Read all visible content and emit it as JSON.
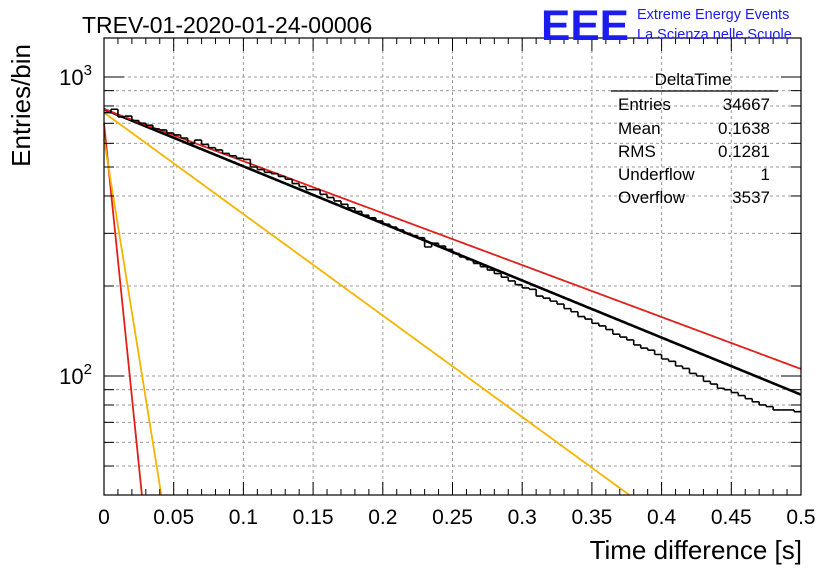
{
  "chart_data": {
    "type": "histogram",
    "title": "TREV-01-2020-01-24-00006",
    "xlabel": "Time difference [s]",
    "ylabel": "Entries/bin",
    "xlim": [
      0,
      0.5
    ],
    "ylim": [
      40,
      1350
    ],
    "yscale": "log",
    "grid": true,
    "x_ticks": [
      "0",
      "0.05",
      "0.1",
      "0.15",
      "0.2",
      "0.25",
      "0.3",
      "0.35",
      "0.4",
      "0.45",
      "0.5"
    ],
    "y_ticks": [
      {
        "base": "10",
        "exp": "3",
        "value": 1000
      },
      {
        "base": "10",
        "exp": "2",
        "value": 100
      }
    ],
    "histogram": {
      "bin_width": 0.005,
      "counts": [
        760,
        780,
        735,
        740,
        715,
        700,
        690,
        670,
        665,
        650,
        640,
        625,
        600,
        615,
        595,
        580,
        570,
        555,
        545,
        535,
        530,
        500,
        490,
        480,
        475,
        465,
        455,
        440,
        430,
        420,
        420,
        405,
        395,
        385,
        375,
        365,
        355,
        345,
        338,
        330,
        322,
        315,
        308,
        300,
        295,
        290,
        270,
        278,
        272,
        265,
        257,
        250,
        245,
        238,
        232,
        226,
        220,
        214,
        208,
        202,
        197,
        195,
        185,
        182,
        178,
        174,
        168,
        164,
        158,
        155,
        150,
        147,
        143,
        138,
        135,
        132,
        127,
        124,
        122,
        118,
        114,
        112,
        108,
        106,
        102,
        100,
        96,
        94,
        91,
        90,
        88,
        86,
        84,
        82,
        80,
        79,
        77,
        77,
        77,
        76
      ],
      "color": "#000000"
    },
    "fits": [
      {
        "A": 780,
        "tau": 0.2275,
        "color": "#000000"
      },
      {
        "A": 780,
        "tau": 0.25,
        "color": "#e0201b"
      },
      {
        "A": 760,
        "tau": 0.128,
        "color": "#f5b400"
      },
      {
        "A": 700,
        "tau": 0.0095,
        "color": "#e0201b"
      },
      {
        "A": 620,
        "tau": 0.015,
        "color": "#f5b400"
      }
    ],
    "stats_box": {
      "title": "DeltaTime",
      "rows": [
        {
          "label": "Entries",
          "value": "34667"
        },
        {
          "label": "Mean",
          "value": "0.1638"
        },
        {
          "label": "RMS",
          "value": "0.1281"
        },
        {
          "label": "Underflow",
          "value": "1"
        },
        {
          "label": "Overflow",
          "value": "3537"
        }
      ]
    }
  },
  "logo": {
    "mark": "EEE",
    "line1": "Extreme Energy Events",
    "line2": "La Scienza nelle Scuole",
    "color": "#1b1bf2"
  }
}
